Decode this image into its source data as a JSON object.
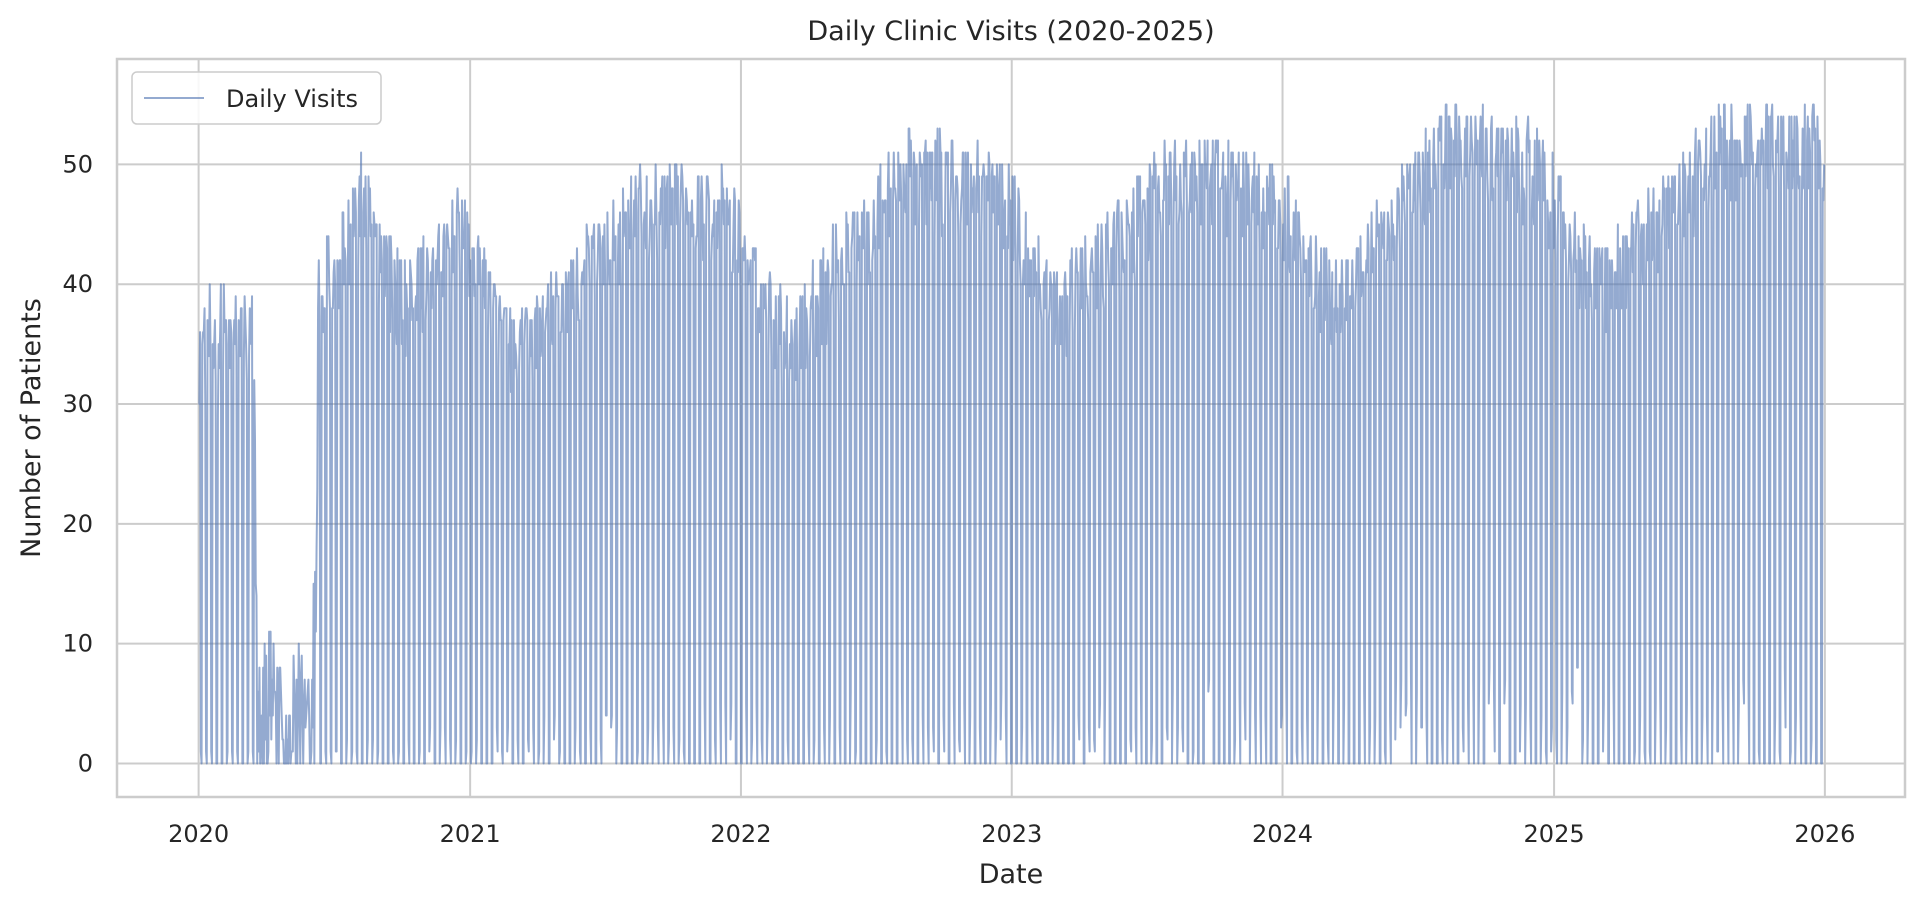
{
  "chart_data": {
    "type": "line",
    "title": "Daily Clinic Visits (2020-2025)",
    "xlabel": "Date",
    "ylabel": "Number of Patients",
    "x_range": [
      "2019-09-13",
      "2026-04-19"
    ],
    "ylim": [
      -2.8,
      58.8
    ],
    "x_ticks": [
      "2020",
      "2021",
      "2022",
      "2023",
      "2024",
      "2025",
      "2026"
    ],
    "y_ticks": [
      0,
      10,
      20,
      30,
      40,
      50
    ],
    "grid": true,
    "legend": {
      "position": "top-left",
      "entries": [
        "Daily Visits"
      ]
    },
    "colors": {
      "series": "#4c72b0",
      "grid": "#cccccc",
      "axes": "#cccccc"
    },
    "series": [
      {
        "name": "Daily Visits",
        "series_opacity": 0.6,
        "pattern": {
          "x_start": "2020-01-01",
          "x_end": "2025-12-31",
          "note_pattern": "weekly cycle: five weekday values followed by two weekend values near 0"
        },
        "weekday_envelope": [
          {
            "date": "2020-01-01",
            "low": 24,
            "high": 40
          },
          {
            "date": "2020-03-15",
            "low": 22,
            "high": 40
          },
          {
            "date": "2020-03-20",
            "low": 1,
            "high": 10
          },
          {
            "date": "2020-04-15",
            "low": 1,
            "high": 13
          },
          {
            "date": "2020-06-01",
            "low": 1,
            "high": 9
          },
          {
            "date": "2020-06-10",
            "low": 30,
            "high": 43
          },
          {
            "date": "2020-08-10",
            "low": 35,
            "high": 51
          },
          {
            "date": "2020-10-01",
            "low": 29,
            "high": 42
          },
          {
            "date": "2020-12-20",
            "low": 36,
            "high": 48
          },
          {
            "date": "2021-03-01",
            "low": 26,
            "high": 37
          },
          {
            "date": "2021-08-15",
            "low": 37,
            "high": 50
          },
          {
            "date": "2021-12-10",
            "low": 38,
            "high": 50
          },
          {
            "date": "2022-03-01",
            "low": 25,
            "high": 39
          },
          {
            "date": "2022-08-10",
            "low": 40,
            "high": 53
          },
          {
            "date": "2022-12-15",
            "low": 38,
            "high": 52
          },
          {
            "date": "2023-03-01",
            "low": 28,
            "high": 41
          },
          {
            "date": "2023-08-10",
            "low": 39,
            "high": 53
          },
          {
            "date": "2023-12-20",
            "low": 38,
            "high": 51
          },
          {
            "date": "2024-03-10",
            "low": 30,
            "high": 42
          },
          {
            "date": "2024-08-15",
            "low": 42,
            "high": 56
          },
          {
            "date": "2024-12-10",
            "low": 39,
            "high": 54
          },
          {
            "date": "2025-03-01",
            "low": 30,
            "high": 43
          },
          {
            "date": "2025-08-10",
            "low": 42,
            "high": 55
          },
          {
            "date": "2025-12-20",
            "low": 43,
            "high": 56
          },
          {
            "date": "2025-12-31",
            "low": 44,
            "high": 52
          }
        ],
        "weekend_levels": [
          {
            "date": "2020-01-01",
            "high": 1
          },
          {
            "date": "2020-06-01",
            "high": 2
          },
          {
            "date": "2021-06-01",
            "high": 4
          },
          {
            "date": "2022-06-01",
            "high": 6
          },
          {
            "date": "2023-06-01",
            "high": 7
          },
          {
            "date": "2024-06-01",
            "high": 8
          },
          {
            "date": "2025-12-31",
            "high": 8
          }
        ]
      }
    ]
  }
}
